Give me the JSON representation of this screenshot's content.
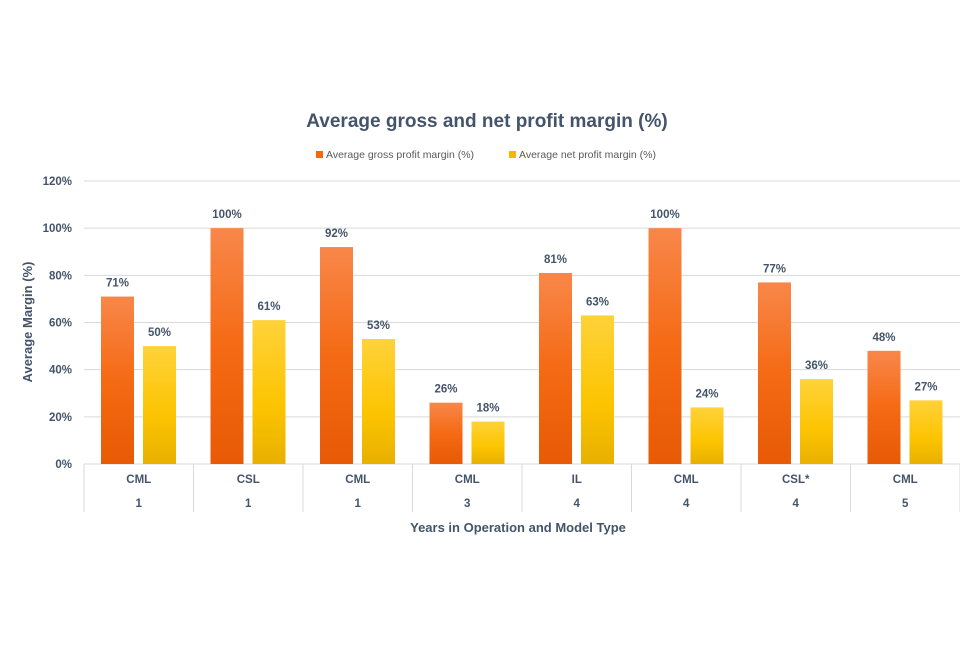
{
  "chart_data": {
    "type": "bar",
    "title": "Average gross and net profit margin (%)",
    "xlabel": "Years in Operation and Model Type",
    "ylabel": "Average Margin (%)",
    "ylim": [
      0,
      120
    ],
    "yticks": [
      "0%",
      "20%",
      "40%",
      "60%",
      "80%",
      "100%",
      "120%"
    ],
    "yticks_values": [
      0,
      20,
      40,
      60,
      80,
      100,
      120
    ],
    "grid": true,
    "legend_position": "top",
    "categories": [
      {
        "model": "CML",
        "years": "1"
      },
      {
        "model": "CSL",
        "years": "1"
      },
      {
        "model": "CML",
        "years": "1"
      },
      {
        "model": "CML",
        "years": "3"
      },
      {
        "model": "IL",
        "years": "4"
      },
      {
        "model": "CML",
        "years": "4"
      },
      {
        "model": "CSL*",
        "years": "4"
      },
      {
        "model": "CML",
        "years": "5"
      }
    ],
    "series": [
      {
        "name": "Average gross profit margin (%)",
        "color": "#f26a0f",
        "values": [
          71,
          100,
          92,
          26,
          81,
          100,
          77,
          48
        ],
        "labels": [
          "71%",
          "100%",
          "92%",
          "26%",
          "81%",
          "100%",
          "77%",
          "48%"
        ]
      },
      {
        "name": "Average net profit margin (%)",
        "color": "#f5b800",
        "values": [
          50,
          61,
          53,
          18,
          63,
          24,
          36,
          27
        ],
        "labels": [
          "50%",
          "61%",
          "53%",
          "18%",
          "63%",
          "24%",
          "36%",
          "27%"
        ]
      }
    ]
  }
}
